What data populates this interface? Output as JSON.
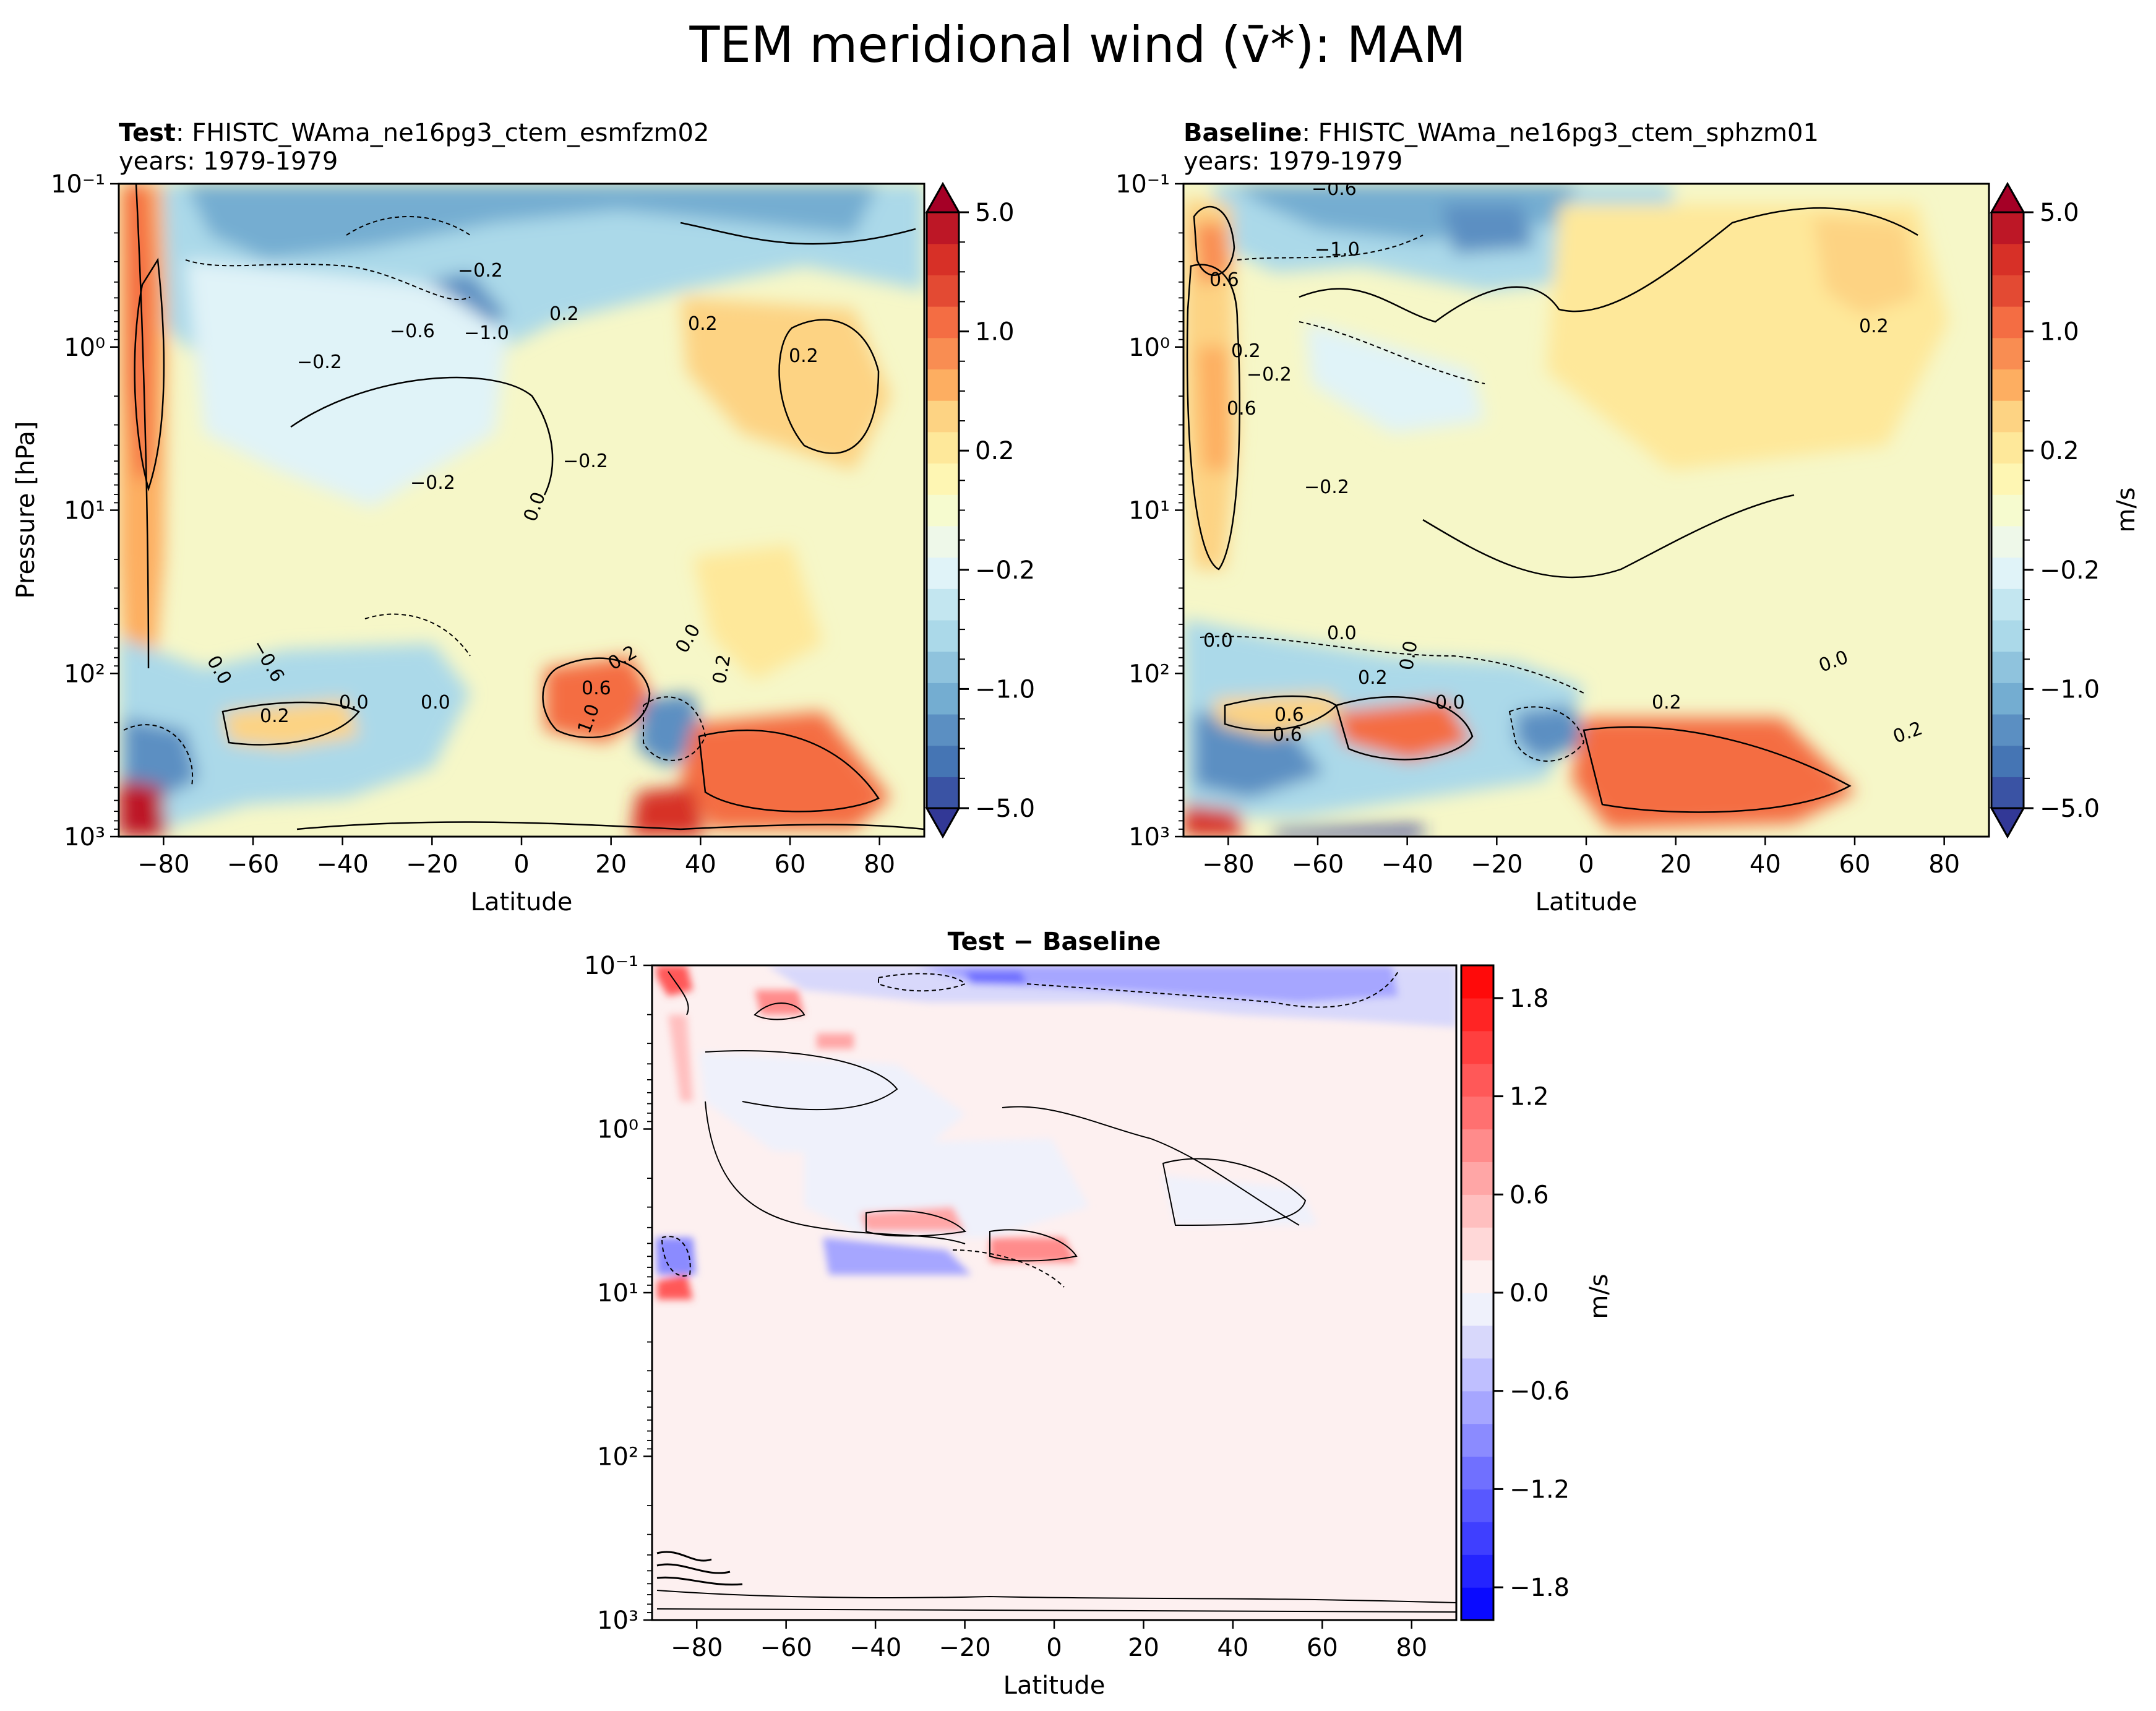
{
  "figure": {
    "suptitle": "TEM meridional wind (v̄*): MAM"
  },
  "chart_data": [
    {
      "type": "heatmap",
      "subtype": "filled-contour",
      "panel": "test",
      "title_bold": "Test",
      "title_rest": ": FHISTC_WAma_ne16pg3_ctem_esmfzm02",
      "subtitle": "years: 1979-1979",
      "xlabel": "Latitude",
      "ylabel": "Pressure [hPa]",
      "xlim": [
        -90,
        90
      ],
      "ylim": [
        1000,
        0.1
      ],
      "yscale": "log",
      "xticks": [
        -80,
        -60,
        -40,
        -20,
        0,
        20,
        40,
        60,
        80
      ],
      "xtick_labels": [
        "−80",
        "−60",
        "−40",
        "−20",
        "0",
        "20",
        "40",
        "60",
        "80"
      ],
      "yticks": [
        0.1,
        1,
        10,
        100,
        1000
      ],
      "ytick_labels": [
        "10⁻¹",
        "10⁰",
        "10¹",
        "10²",
        "10³"
      ],
      "colormap": "RdYlBu_r",
      "colorbar": {
        "levels": [
          -5.0,
          -4.0,
          -3.0,
          -2.0,
          -1.0,
          -0.8,
          -0.6,
          -0.4,
          -0.2,
          -0.1,
          0.0,
          0.1,
          0.2,
          0.4,
          0.6,
          0.8,
          1.0,
          2.0,
          3.0,
          4.0,
          5.0
        ],
        "tick_labels": [
          "5.0",
          "1.0",
          "0.2",
          "−0.2",
          "−1.0",
          "−5.0"
        ],
        "extend": "both",
        "label": "",
        "colors": [
          "#323896",
          "#3a53a4",
          "#4575b4",
          "#5b8fc2",
          "#74add1",
          "#8fc3dd",
          "#abd9e9",
          "#c3e6f0",
          "#e0f3f8",
          "#eef8e9",
          "#f6fbcf",
          "#fef6b3",
          "#fee89a",
          "#fdd383",
          "#fdae61",
          "#f98d52",
          "#f46d43",
          "#e34a33",
          "#d73027",
          "#bd1726",
          "#a50026"
        ]
      },
      "contour_labels": [
        "−0.2",
        "−0.6",
        "−1.0",
        "0.2",
        "−0.2",
        "0.2",
        "0.2",
        "−0.2",
        "−0.2",
        "0.0",
        "0.0",
        "0.2",
        "0.0",
        "0.2",
        "0.6",
        "0.0",
        "−0.6",
        "1.0",
        "0.0",
        "0.2"
      ]
    },
    {
      "type": "heatmap",
      "subtype": "filled-contour",
      "panel": "baseline",
      "title_bold": "Baseline",
      "title_rest": ": FHISTC_WAma_ne16pg3_ctem_sphzm01",
      "subtitle": "years: 1979-1979",
      "xlabel": "Latitude",
      "ylabel": "",
      "xlim": [
        -90,
        90
      ],
      "ylim": [
        1000,
        0.1
      ],
      "yscale": "log",
      "xticks": [
        -80,
        -60,
        -40,
        -20,
        0,
        20,
        40,
        60,
        80
      ],
      "xtick_labels": [
        "−80",
        "−60",
        "−40",
        "−20",
        "0",
        "20",
        "40",
        "60",
        "80"
      ],
      "yticks": [
        0.1,
        1,
        10,
        100,
        1000
      ],
      "ytick_labels": [
        "10⁻¹",
        "10⁰",
        "10¹",
        "10²",
        "10³"
      ],
      "colormap": "RdYlBu_r",
      "colorbar": {
        "levels": [
          -5.0,
          -4.0,
          -3.0,
          -2.0,
          -1.0,
          -0.8,
          -0.6,
          -0.4,
          -0.2,
          -0.1,
          0.0,
          0.1,
          0.2,
          0.4,
          0.6,
          0.8,
          1.0,
          2.0,
          3.0,
          4.0,
          5.0
        ],
        "tick_labels": [
          "5.0",
          "1.0",
          "0.2",
          "−0.2",
          "−1.0",
          "−5.0"
        ],
        "extend": "both",
        "label": "m/s",
        "colors": [
          "#323896",
          "#3a53a4",
          "#4575b4",
          "#5b8fc2",
          "#74add1",
          "#8fc3dd",
          "#abd9e9",
          "#c3e6f0",
          "#e0f3f8",
          "#eef8e9",
          "#f6fbcf",
          "#fef6b3",
          "#fee89a",
          "#fdd383",
          "#fdae61",
          "#f98d52",
          "#f46d43",
          "#e34a33",
          "#d73027",
          "#bd1726",
          "#a50026"
        ]
      },
      "contour_labels": [
        "−0.6",
        "−1.0",
        "0.6",
        "0.2",
        "0.2",
        "−0.2",
        "0.6",
        "−0.2",
        "0.0",
        "0.0",
        "0.2",
        "0.0",
        "0.0",
        "0.2",
        "0.0",
        "0.6",
        "0.6",
        "0.2"
      ]
    },
    {
      "type": "heatmap",
      "subtype": "filled-contour",
      "panel": "difference",
      "title": "Test − Baseline",
      "xlabel": "Latitude",
      "ylabel": "",
      "xlim": [
        -90,
        90
      ],
      "ylim": [
        1000,
        0.1
      ],
      "yscale": "log",
      "xticks": [
        -80,
        -60,
        -40,
        -20,
        0,
        20,
        40,
        60,
        80
      ],
      "xtick_labels": [
        "−80",
        "−60",
        "−40",
        "−20",
        "0",
        "20",
        "40",
        "60",
        "80"
      ],
      "yticks": [
        0.1,
        1,
        10,
        100,
        1000
      ],
      "ytick_labels": [
        "10⁻¹",
        "10⁰",
        "10¹",
        "10²",
        "10³"
      ],
      "colormap": "bwr",
      "colorbar": {
        "levels": [
          -2.0,
          -1.8,
          -1.6,
          -1.4,
          -1.2,
          -1.0,
          -0.8,
          -0.6,
          -0.4,
          -0.2,
          0.0,
          0.2,
          0.4,
          0.6,
          0.8,
          1.0,
          1.2,
          1.4,
          1.6,
          1.8,
          2.0
        ],
        "tick_values": [
          1.8,
          1.2,
          0.6,
          0.0,
          -0.6,
          -1.2,
          -1.8
        ],
        "tick_labels": [
          "1.8",
          "1.2",
          "0.6",
          "0.0",
          "−0.6",
          "−1.2",
          "−1.8"
        ],
        "extend": "neither",
        "label": "m/s",
        "colors": [
          "#0a0aff",
          "#2424ff",
          "#3f3fff",
          "#5858ff",
          "#7070ff",
          "#8b8bff",
          "#a6a6ff",
          "#bfbfff",
          "#d8d8fb",
          "#eff1fb",
          "#fdf0f0",
          "#ffd8d8",
          "#ffbfbf",
          "#ffa6a6",
          "#ff8b8b",
          "#ff7070",
          "#ff5858",
          "#ff3f3f",
          "#ff2424",
          "#ff0a0a"
        ]
      }
    }
  ]
}
